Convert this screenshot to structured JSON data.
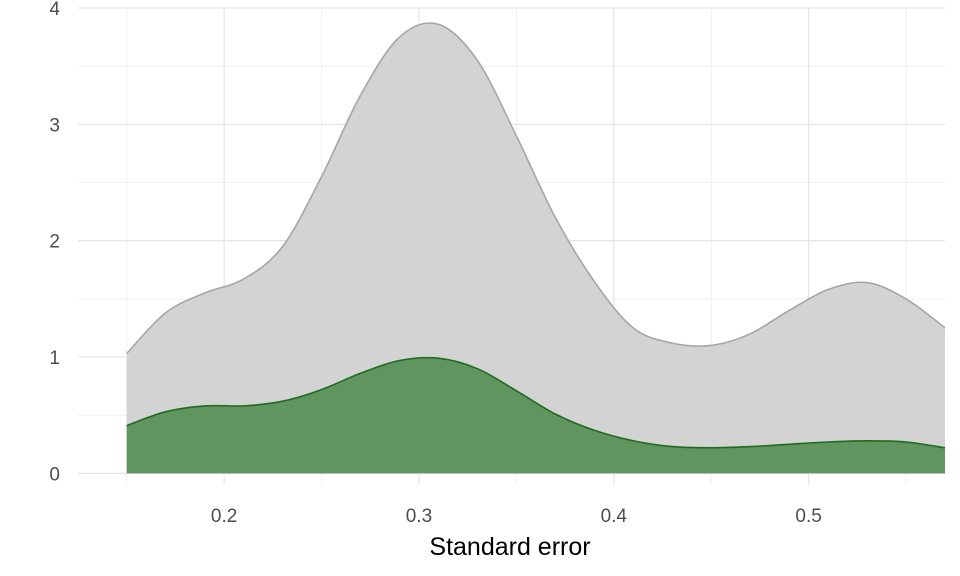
{
  "chart_data": {
    "type": "area",
    "title": "",
    "xlabel": "Standard error",
    "ylabel": "",
    "xlim": [
      0.125,
      0.57
    ],
    "ylim": [
      -0.1,
      4.0
    ],
    "x_ticks": [
      "0.2",
      "0.3",
      "0.4",
      "0.5"
    ],
    "y_ticks": [
      "0",
      "1",
      "2",
      "3",
      "4"
    ],
    "grid": true,
    "legend": "none",
    "series": [
      {
        "color": "#d3d3d3",
        "stroke": "#a6a6a6",
        "x": [
          0.15,
          0.17,
          0.19,
          0.21,
          0.23,
          0.25,
          0.27,
          0.29,
          0.31,
          0.33,
          0.35,
          0.37,
          0.39,
          0.41,
          0.43,
          0.45,
          0.47,
          0.49,
          0.51,
          0.53,
          0.55,
          0.57
        ],
        "values": [
          1.03,
          1.38,
          1.55,
          1.67,
          1.95,
          2.55,
          3.25,
          3.75,
          3.86,
          3.55,
          2.9,
          2.2,
          1.65,
          1.25,
          1.12,
          1.1,
          1.2,
          1.4,
          1.58,
          1.64,
          1.5,
          1.25
        ]
      },
      {
        "color": "#5a9158",
        "stroke": "#1f6b1f",
        "x": [
          0.15,
          0.17,
          0.19,
          0.21,
          0.23,
          0.25,
          0.27,
          0.29,
          0.31,
          0.33,
          0.35,
          0.37,
          0.39,
          0.41,
          0.43,
          0.45,
          0.47,
          0.49,
          0.51,
          0.53,
          0.55,
          0.57
        ],
        "values": [
          0.41,
          0.53,
          0.58,
          0.58,
          0.62,
          0.72,
          0.86,
          0.97,
          0.99,
          0.9,
          0.71,
          0.51,
          0.37,
          0.28,
          0.23,
          0.22,
          0.23,
          0.25,
          0.27,
          0.28,
          0.27,
          0.22
        ]
      }
    ]
  }
}
